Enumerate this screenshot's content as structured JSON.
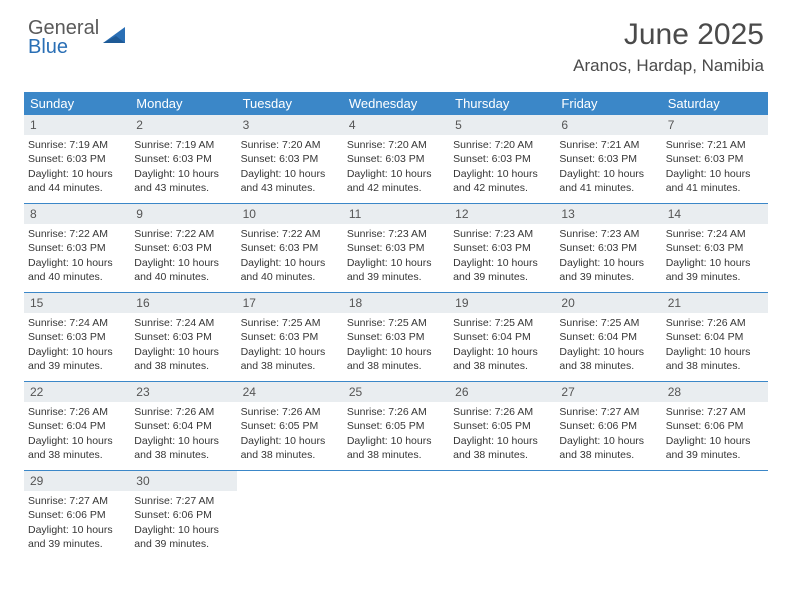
{
  "logo": {
    "line1": "General",
    "line2": "Blue"
  },
  "title": "June 2025",
  "location": "Aranos, Hardap, Namibia",
  "colors": {
    "headerBar": "#3b87c8",
    "dayNumBg": "#e9edf0",
    "weekBorder": "#3b87c8",
    "text": "#363636",
    "logoGray": "#5a5a5a",
    "logoBlue": "#2a6fb5"
  },
  "weekdays": [
    "Sunday",
    "Monday",
    "Tuesday",
    "Wednesday",
    "Thursday",
    "Friday",
    "Saturday"
  ],
  "weeks": [
    [
      {
        "n": 1,
        "sr": "7:19 AM",
        "ss": "6:03 PM",
        "dl": "10 hours and 44 minutes."
      },
      {
        "n": 2,
        "sr": "7:19 AM",
        "ss": "6:03 PM",
        "dl": "10 hours and 43 minutes."
      },
      {
        "n": 3,
        "sr": "7:20 AM",
        "ss": "6:03 PM",
        "dl": "10 hours and 43 minutes."
      },
      {
        "n": 4,
        "sr": "7:20 AM",
        "ss": "6:03 PM",
        "dl": "10 hours and 42 minutes."
      },
      {
        "n": 5,
        "sr": "7:20 AM",
        "ss": "6:03 PM",
        "dl": "10 hours and 42 minutes."
      },
      {
        "n": 6,
        "sr": "7:21 AM",
        "ss": "6:03 PM",
        "dl": "10 hours and 41 minutes."
      },
      {
        "n": 7,
        "sr": "7:21 AM",
        "ss": "6:03 PM",
        "dl": "10 hours and 41 minutes."
      }
    ],
    [
      {
        "n": 8,
        "sr": "7:22 AM",
        "ss": "6:03 PM",
        "dl": "10 hours and 40 minutes."
      },
      {
        "n": 9,
        "sr": "7:22 AM",
        "ss": "6:03 PM",
        "dl": "10 hours and 40 minutes."
      },
      {
        "n": 10,
        "sr": "7:22 AM",
        "ss": "6:03 PM",
        "dl": "10 hours and 40 minutes."
      },
      {
        "n": 11,
        "sr": "7:23 AM",
        "ss": "6:03 PM",
        "dl": "10 hours and 39 minutes."
      },
      {
        "n": 12,
        "sr": "7:23 AM",
        "ss": "6:03 PM",
        "dl": "10 hours and 39 minutes."
      },
      {
        "n": 13,
        "sr": "7:23 AM",
        "ss": "6:03 PM",
        "dl": "10 hours and 39 minutes."
      },
      {
        "n": 14,
        "sr": "7:24 AM",
        "ss": "6:03 PM",
        "dl": "10 hours and 39 minutes."
      }
    ],
    [
      {
        "n": 15,
        "sr": "7:24 AM",
        "ss": "6:03 PM",
        "dl": "10 hours and 39 minutes."
      },
      {
        "n": 16,
        "sr": "7:24 AM",
        "ss": "6:03 PM",
        "dl": "10 hours and 38 minutes."
      },
      {
        "n": 17,
        "sr": "7:25 AM",
        "ss": "6:03 PM",
        "dl": "10 hours and 38 minutes."
      },
      {
        "n": 18,
        "sr": "7:25 AM",
        "ss": "6:03 PM",
        "dl": "10 hours and 38 minutes."
      },
      {
        "n": 19,
        "sr": "7:25 AM",
        "ss": "6:04 PM",
        "dl": "10 hours and 38 minutes."
      },
      {
        "n": 20,
        "sr": "7:25 AM",
        "ss": "6:04 PM",
        "dl": "10 hours and 38 minutes."
      },
      {
        "n": 21,
        "sr": "7:26 AM",
        "ss": "6:04 PM",
        "dl": "10 hours and 38 minutes."
      }
    ],
    [
      {
        "n": 22,
        "sr": "7:26 AM",
        "ss": "6:04 PM",
        "dl": "10 hours and 38 minutes."
      },
      {
        "n": 23,
        "sr": "7:26 AM",
        "ss": "6:04 PM",
        "dl": "10 hours and 38 minutes."
      },
      {
        "n": 24,
        "sr": "7:26 AM",
        "ss": "6:05 PM",
        "dl": "10 hours and 38 minutes."
      },
      {
        "n": 25,
        "sr": "7:26 AM",
        "ss": "6:05 PM",
        "dl": "10 hours and 38 minutes."
      },
      {
        "n": 26,
        "sr": "7:26 AM",
        "ss": "6:05 PM",
        "dl": "10 hours and 38 minutes."
      },
      {
        "n": 27,
        "sr": "7:27 AM",
        "ss": "6:06 PM",
        "dl": "10 hours and 38 minutes."
      },
      {
        "n": 28,
        "sr": "7:27 AM",
        "ss": "6:06 PM",
        "dl": "10 hours and 39 minutes."
      }
    ],
    [
      {
        "n": 29,
        "sr": "7:27 AM",
        "ss": "6:06 PM",
        "dl": "10 hours and 39 minutes."
      },
      {
        "n": 30,
        "sr": "7:27 AM",
        "ss": "6:06 PM",
        "dl": "10 hours and 39 minutes."
      },
      null,
      null,
      null,
      null,
      null
    ]
  ],
  "labels": {
    "sunrise": "Sunrise:",
    "sunset": "Sunset:",
    "daylight": "Daylight:"
  }
}
